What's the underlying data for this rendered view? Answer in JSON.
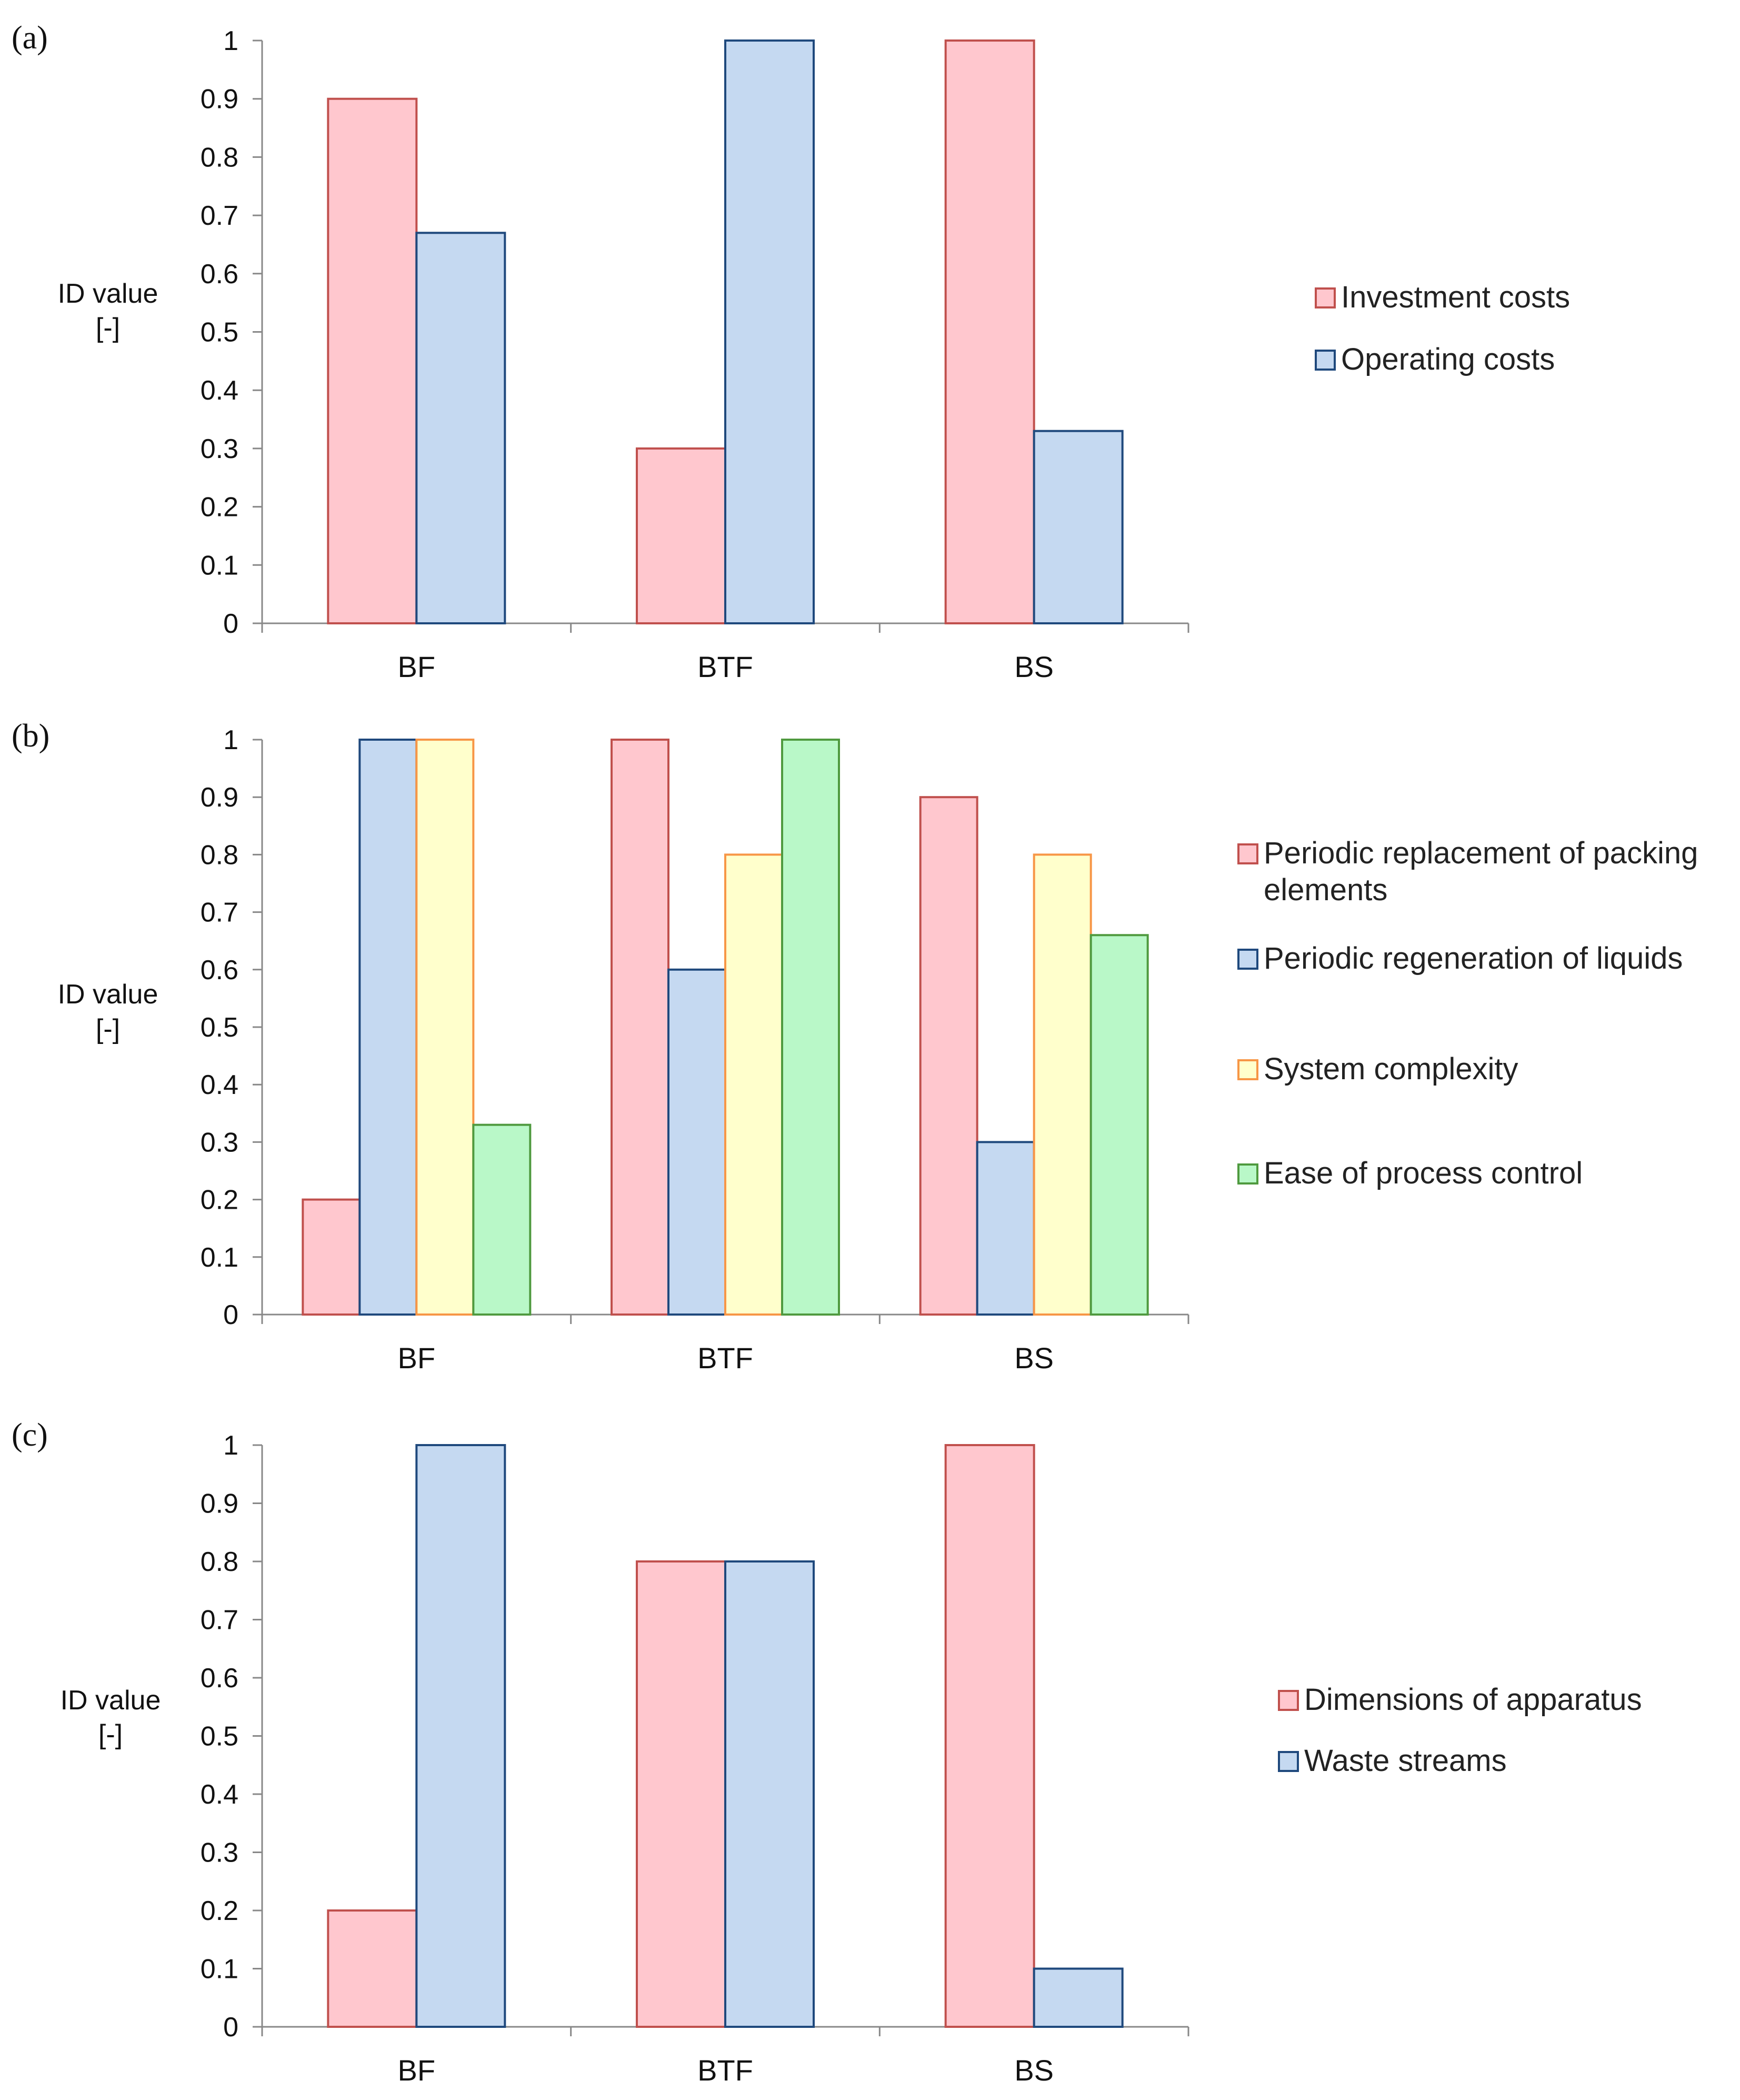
{
  "chart_data": [
    {
      "type": "bar",
      "panel_label": "(a)",
      "ylabel": [
        "ID value",
        "[-]"
      ],
      "xlabel": "",
      "ylim": [
        0,
        1
      ],
      "yticks": [
        "0",
        "0.1",
        "0.2",
        "0.3",
        "0.4",
        "0.5",
        "0.6",
        "0.7",
        "0.8",
        "0.9",
        "1"
      ],
      "categories": [
        "BF",
        "BTF",
        "BS"
      ],
      "legend_position": "right",
      "series": [
        {
          "name": "Investment costs",
          "legend_lines": [
            "Investment costs"
          ],
          "values": [
            0.9,
            0.3,
            1.0
          ],
          "fill": "#FFC7CE",
          "stroke": "#C0504D"
        },
        {
          "name": "Operating costs",
          "legend_lines": [
            "Operating costs"
          ],
          "values": [
            0.67,
            1.0,
            0.33
          ],
          "fill": "#C5D9F1",
          "stroke": "#1F497D"
        }
      ]
    },
    {
      "type": "bar",
      "panel_label": "(b)",
      "ylabel": [
        "ID value",
        "[-]"
      ],
      "xlabel": "",
      "ylim": [
        0,
        1
      ],
      "yticks": [
        "0",
        "0.1",
        "0.2",
        "0.3",
        "0.4",
        "0.5",
        "0.6",
        "0.7",
        "0.8",
        "0.9",
        "1"
      ],
      "categories": [
        "BF",
        "BTF",
        "BS"
      ],
      "legend_position": "right",
      "series": [
        {
          "name": "Periodic replacement of packing elements",
          "legend_lines": [
            "Periodic replacement of packing",
            "elements"
          ],
          "values": [
            0.2,
            1.0,
            0.9
          ],
          "fill": "#FFC7CE",
          "stroke": "#C0504D"
        },
        {
          "name": "Periodic regeneration of liquids",
          "legend_lines": [
            "Periodic regeneration of liquids"
          ],
          "values": [
            1.0,
            0.6,
            0.3
          ],
          "fill": "#C5D9F1",
          "stroke": "#1F497D"
        },
        {
          "name": "System complexity",
          "legend_lines": [
            "System complexity"
          ],
          "values": [
            1.0,
            0.8,
            0.8
          ],
          "fill": "#FFFFCC",
          "stroke": "#F79646"
        },
        {
          "name": "Ease of process control",
          "legend_lines": [
            "Ease of process control"
          ],
          "values": [
            0.33,
            1.0,
            0.66
          ],
          "fill": "#B9F8C8",
          "stroke": "#4F9A3F"
        }
      ]
    },
    {
      "type": "bar",
      "panel_label": "(c)",
      "ylabel": [
        "ID value",
        "[-]"
      ],
      "xlabel": "",
      "ylim": [
        0,
        1
      ],
      "yticks": [
        "0",
        "0.1",
        "0.2",
        "0.3",
        "0.4",
        "0.5",
        "0.6",
        "0.7",
        "0.8",
        "0.9",
        "1"
      ],
      "categories": [
        "BF",
        "BTF",
        "BS"
      ],
      "legend_position": "right",
      "series": [
        {
          "name": "Dimensions of apparatus",
          "legend_lines": [
            "Dimensions of apparatus"
          ],
          "values": [
            0.2,
            0.8,
            1.0
          ],
          "fill": "#FFC7CE",
          "stroke": "#C0504D"
        },
        {
          "name": "Waste streams",
          "legend_lines": [
            "Waste streams"
          ],
          "values": [
            1.0,
            0.8,
            0.1
          ],
          "fill": "#C5D9F1",
          "stroke": "#1F497D"
        }
      ]
    }
  ]
}
